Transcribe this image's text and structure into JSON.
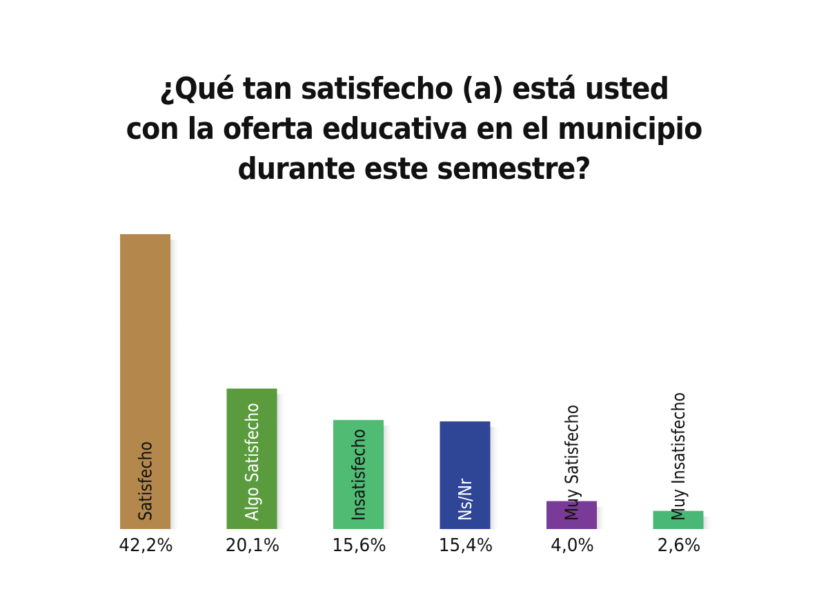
{
  "chart_data": {
    "type": "bar",
    "title_lines": [
      "¿Qué tan satisfecho (a) está usted",
      "con la oferta educativa en el municipio",
      "durante este semestre?"
    ],
    "xlabel": "",
    "ylabel": "",
    "ylim": [
      0,
      42.2
    ],
    "grid": false,
    "legend": "none",
    "categories": [
      "Satisfecho",
      "Algo Satisfecho",
      "Insatisfecho",
      "Ns/Nr",
      "Muy Satisfecho",
      "Muy Insatisfecho"
    ],
    "values": [
      42.2,
      20.1,
      15.6,
      15.4,
      4.0,
      2.6
    ],
    "value_labels": [
      "42,2%",
      "20,1%",
      "15,6%",
      "15,4%",
      "4,0%",
      "2,6%"
    ],
    "colors": [
      "#b4884d",
      "#5a9b3e",
      "#4fbb73",
      "#2f4596",
      "#7a3a97",
      "#49b876"
    ],
    "label_colors": [
      "#111111",
      "#ffffff",
      "#111111",
      "#ffffff",
      "#111111",
      "#111111"
    ]
  }
}
